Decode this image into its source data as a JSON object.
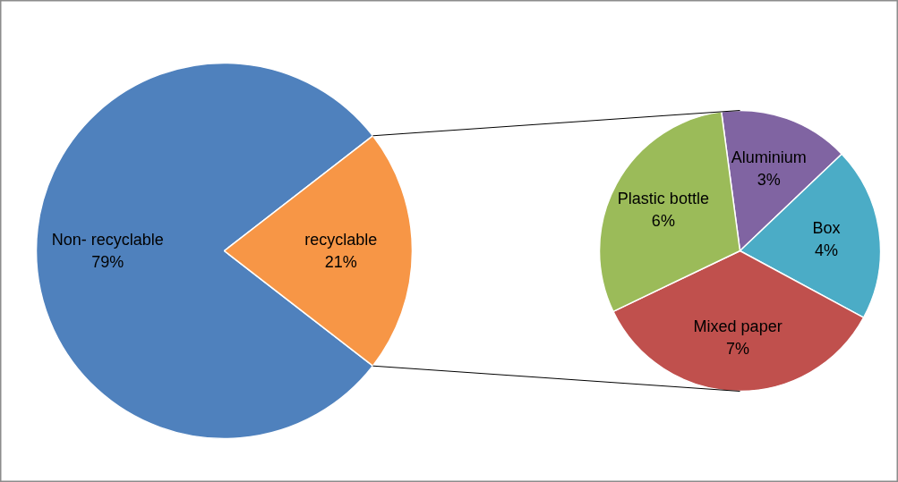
{
  "chart_data": [
    {
      "type": "pie",
      "categories": [
        "Non- recyclable",
        "recyclable"
      ],
      "values": [
        79,
        21
      ],
      "value_labels": [
        "79%",
        "21%"
      ],
      "colors": [
        "#4f81bd",
        "#f79646"
      ]
    },
    {
      "type": "pie",
      "categories": [
        "Aluminium",
        "Box",
        "Mixed paper",
        "Plastic bottle"
      ],
      "values": [
        3,
        4,
        7,
        6
      ],
      "value_labels": [
        "3%",
        "4%",
        "7%",
        "6%"
      ],
      "colors": [
        "#8064a2",
        "#4bacc6",
        "#c0504d",
        "#9bbb59"
      ]
    }
  ]
}
